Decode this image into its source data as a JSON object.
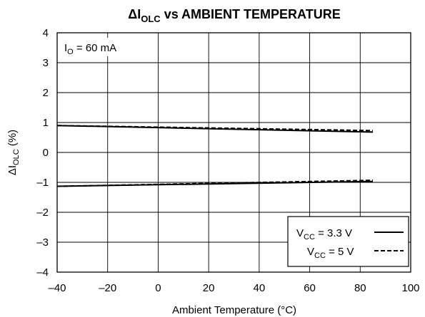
{
  "chart_data": {
    "type": "line",
    "title": {
      "prefix": "ΔI",
      "sub": "OLC",
      "rest": " vs AMBIENT TEMPERATURE"
    },
    "xlabel": "Ambient Temperature (°C)",
    "ylabel": {
      "prefix": "ΔI",
      "sub": "OLC",
      "suffix": " (%)"
    },
    "xlim": [
      -40,
      100
    ],
    "ylim": [
      -4,
      4
    ],
    "x_ticks": [
      -40,
      -20,
      0,
      20,
      40,
      60,
      80,
      100
    ],
    "x_tick_labels": [
      "–40",
      "–20",
      "0",
      "20",
      "40",
      "60",
      "80",
      "100"
    ],
    "y_ticks": [
      4,
      3,
      2,
      1,
      0,
      -1,
      -2,
      -3,
      -4
    ],
    "y_tick_labels": [
      "4",
      "3",
      "2",
      "1",
      "0",
      "–1",
      "–2",
      "–3",
      "–4"
    ],
    "grid": true,
    "condition": {
      "prefix": "I",
      "sub": "O",
      "suffix": " = 60 mA"
    },
    "legend": {
      "position": "bottom-right",
      "entries": [
        {
          "prefix": "V",
          "sub": "CC",
          "suffix": " = 3.3 V",
          "style": "solid"
        },
        {
          "prefix": "V",
          "sub": "CC",
          "suffix": " = 5 V",
          "style": "dashed"
        }
      ]
    },
    "series": [
      {
        "style": "solid",
        "x": [
          -40,
          85
        ],
        "y": [
          0.9,
          0.68
        ]
      },
      {
        "style": "dashed",
        "x": [
          -40,
          85
        ],
        "y": [
          0.9,
          0.73
        ]
      },
      {
        "style": "solid",
        "x": [
          -40,
          85
        ],
        "y": [
          -1.13,
          -0.97
        ]
      },
      {
        "style": "dashed",
        "x": [
          -40,
          85
        ],
        "y": [
          -1.13,
          -0.93
        ]
      }
    ]
  }
}
